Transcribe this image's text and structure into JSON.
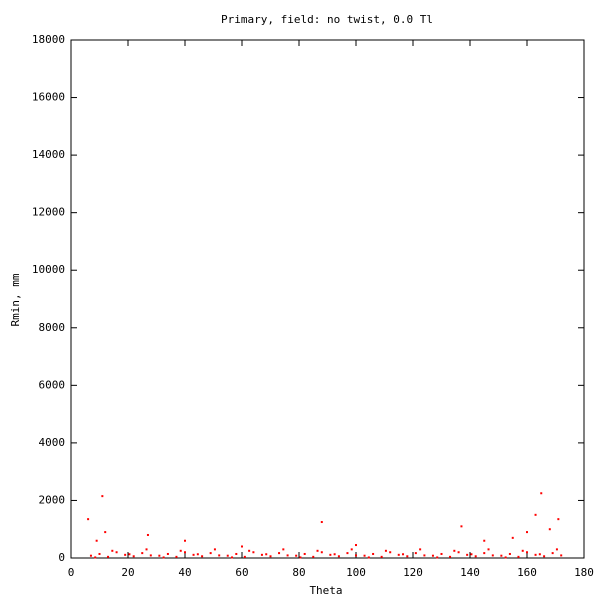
{
  "chart_data": {
    "type": "scatter",
    "title": "Primary, field: no twist, 0.0 Tl",
    "x_label": "Theta",
    "y_label": "Rmin, mm",
    "xlim": [
      0,
      180
    ],
    "ylim": [
      0,
      18000
    ],
    "xticks": [
      0,
      20,
      40,
      60,
      80,
      100,
      120,
      140,
      160,
      180
    ],
    "yticks": [
      0,
      2000,
      4000,
      6000,
      8000,
      10000,
      12000,
      14000,
      16000,
      18000
    ],
    "grid": false,
    "series": [
      {
        "color": "#ff0000",
        "x": [
          7,
          10,
          13,
          16,
          19,
          22,
          25,
          28,
          31,
          34,
          37,
          40,
          43,
          46,
          49,
          52,
          55,
          58,
          61,
          64,
          67,
          70,
          73,
          76,
          79,
          82,
          85,
          88,
          91,
          94,
          97,
          100,
          103,
          106,
          109,
          112,
          115,
          118,
          121,
          124,
          127,
          130,
          133,
          136,
          139,
          142,
          145,
          148,
          151,
          154,
          157,
          160,
          163,
          166,
          169,
          172,
          8.5,
          14.5,
          20.5,
          26.5,
          32.5,
          38.5,
          44.5,
          50.5,
          56.5,
          62.5,
          68.5,
          74.5,
          80.5,
          86.5,
          92.5,
          98.5,
          104.5,
          110.5,
          116.5,
          122.5,
          128.5,
          134.5,
          140.5,
          146.5,
          152.5,
          158.5,
          164.5,
          170.5,
          6,
          9,
          11,
          12,
          27,
          40,
          60,
          88,
          100,
          137,
          145,
          155,
          160,
          163,
          165,
          168,
          171
        ],
        "values": [
          80,
          140,
          40,
          200,
          110,
          60,
          170,
          90,
          80,
          140,
          40,
          200,
          110,
          60,
          170,
          90,
          80,
          140,
          40,
          200,
          110,
          60,
          170,
          90,
          80,
          140,
          40,
          200,
          110,
          60,
          170,
          90,
          80,
          140,
          40,
          200,
          110,
          60,
          170,
          90,
          80,
          140,
          40,
          200,
          110,
          60,
          170,
          90,
          80,
          140,
          40,
          200,
          110,
          60,
          170,
          90,
          20,
          250,
          130,
          300,
          20,
          250,
          130,
          300,
          20,
          250,
          130,
          300,
          20,
          250,
          130,
          300,
          20,
          250,
          130,
          300,
          20,
          250,
          130,
          300,
          20,
          250,
          130,
          300,
          1350,
          600,
          2150,
          900,
          800,
          600,
          400,
          1250,
          450,
          1100,
          600,
          700,
          900,
          1500,
          2250,
          1000,
          1350
        ]
      }
    ]
  }
}
